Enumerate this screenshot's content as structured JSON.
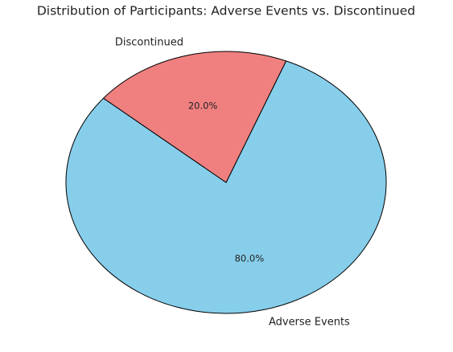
{
  "chart_data": {
    "type": "pie",
    "title": "Distribution of Participants: Adverse Events vs. Discontinued",
    "categories": [
      "Adverse Events",
      "Discontinued"
    ],
    "values": [
      80,
      20
    ],
    "value_labels": [
      "80.0%",
      "20.0%"
    ],
    "colors": [
      "#87ceeb",
      "#f08080"
    ],
    "start_angle": 140
  }
}
